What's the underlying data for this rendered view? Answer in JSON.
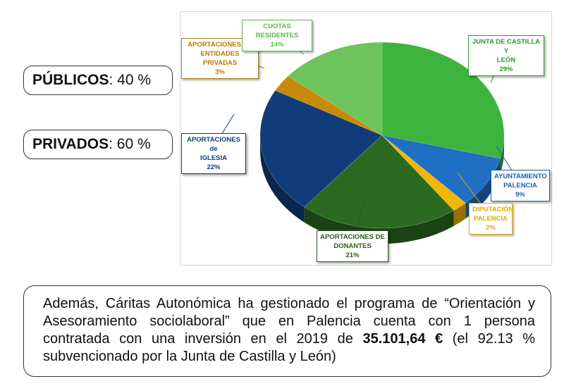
{
  "summary": {
    "publicos": {
      "label": "PÚBLICOS",
      "value": ": 40 %"
    },
    "privados": {
      "label": "PRIVADOS",
      "value": ": 60 %"
    }
  },
  "chart_data": {
    "type": "pie",
    "title": "",
    "unit": "%",
    "slices": [
      {
        "label": [
          "JUNTA DE CASTILLA Y",
          "LEÓN"
        ],
        "value": 29,
        "display": "29%",
        "color": "#3db43d",
        "text_color": "#2e9a2e"
      },
      {
        "label": [
          "AYUNTAMIENTO",
          "PALENCIA"
        ],
        "value": 9,
        "display": "9%",
        "color": "#1f6fc4",
        "text_color": "#1f5fae"
      },
      {
        "label": [
          "DIPUTACIÓN",
          "PALENCIA"
        ],
        "value": 2,
        "display": "2%",
        "color": "#f2b705",
        "text_color": "#e0a800"
      },
      {
        "label": [
          "APORTACIONES DE",
          "DONANTES"
        ],
        "value": 21,
        "display": "21%",
        "color": "#2b6b20",
        "text_color": "#2a5a1e"
      },
      {
        "label": [
          "APORTACIONES de",
          "IGLESIA"
        ],
        "value": 22,
        "display": "22%",
        "color": "#103d7a",
        "text_color": "#103d7a"
      },
      {
        "label": [
          "APORTACIONES DE",
          "ENTIDADES PRIVADAS"
        ],
        "value": 3,
        "display": "3%",
        "color": "#c98a0a",
        "text_color": "#b07a08"
      },
      {
        "label": [
          "CUOTAS RESIDENTES"
        ],
        "value": 14,
        "display": "14%",
        "color": "#6cc45a",
        "text_color": "#5cb84a"
      }
    ]
  },
  "note": {
    "p1": "Además, Cáritas Autonómica ha gestionado el programa de “Orientación y Asesoramiento sociolaboral” que en Palencia cuenta con 1 persona contratada con una inversión en el 2019 de ",
    "amount": "35.101,64 €",
    "p2": " (el 92.13 % subvencionado por la Junta de Castilla y León)"
  }
}
